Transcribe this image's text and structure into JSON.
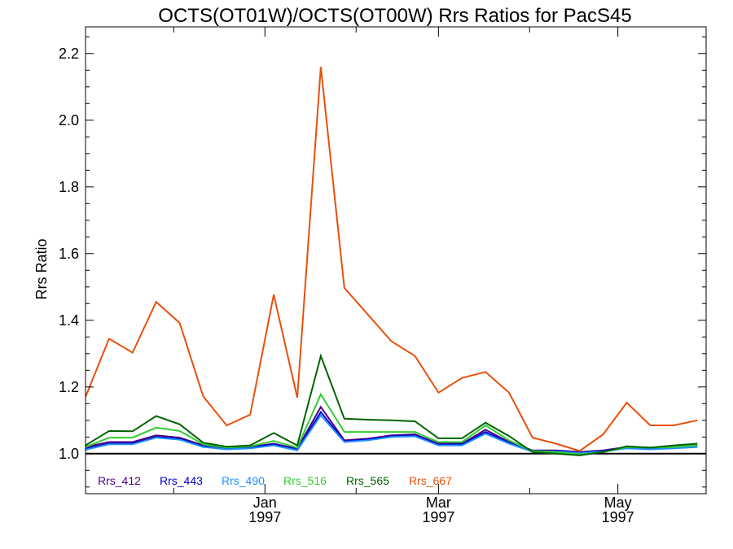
{
  "chart_data": {
    "type": "line",
    "title": "OCTS(OT01W)/OCTS(OT00W)  Rrs Ratios for PacS45",
    "xlabel": "",
    "ylabel": "Rrs Ratio",
    "x_range": [
      "1996-11-01",
      "1997-05-31"
    ],
    "ylim": [
      0.88,
      2.28
    ],
    "y_ticks": [
      1.0,
      1.2,
      1.4,
      1.6,
      1.8,
      2.0,
      2.2
    ],
    "y_tick_labels": [
      "1.0",
      "1.2",
      "1.4",
      "1.6",
      "1.8",
      "2.0",
      "2.2"
    ],
    "x_major_ticks": [
      {
        "date": "1997-01-01",
        "label1": "Jan",
        "label2": "1997"
      },
      {
        "date": "1997-03-01",
        "label1": "Mar",
        "label2": "1997"
      },
      {
        "date": "1997-05-01",
        "label1": "May",
        "label2": "1997"
      }
    ],
    "x_minor_ticks": [
      "1996-12-01",
      "1997-02-01",
      "1997-04-01"
    ],
    "reference_line": 1.0,
    "grid": false,
    "legend_position": "bottom-left",
    "x": [
      "1996-11-01",
      "1996-11-09",
      "1996-11-17",
      "1996-11-25",
      "1996-12-03",
      "1996-12-11",
      "1996-12-19",
      "1996-12-27",
      "1997-01-04",
      "1997-01-12",
      "1997-01-20",
      "1997-01-28",
      "1997-02-05",
      "1997-02-13",
      "1997-02-21",
      "1997-03-01",
      "1997-03-09",
      "1997-03-17",
      "1997-03-25",
      "1997-04-02",
      "1997-04-10",
      "1997-04-18",
      "1997-04-26",
      "1997-05-04",
      "1997-05-12",
      "1997-05-20",
      "1997-05-28"
    ],
    "series": [
      {
        "name": "Rrs_412",
        "color": "#4b0082",
        "values": [
          1.02,
          1.035,
          1.035,
          1.055,
          1.048,
          1.025,
          1.018,
          1.02,
          1.03,
          1.015,
          1.14,
          1.04,
          1.045,
          1.055,
          1.058,
          1.03,
          1.03,
          1.072,
          1.035,
          1.01,
          1.01,
          1.005,
          1.01,
          1.02,
          1.018,
          1.02,
          1.025
        ]
      },
      {
        "name": "Rrs_443",
        "color": "#0000cd",
        "values": [
          1.015,
          1.03,
          1.03,
          1.05,
          1.045,
          1.022,
          1.015,
          1.018,
          1.028,
          1.012,
          1.125,
          1.037,
          1.043,
          1.052,
          1.055,
          1.027,
          1.028,
          1.065,
          1.032,
          1.008,
          1.008,
          1.003,
          1.008,
          1.018,
          1.015,
          1.018,
          1.022
        ]
      },
      {
        "name": "Rrs_490",
        "color": "#1e90ff",
        "values": [
          1.012,
          1.028,
          1.028,
          1.048,
          1.042,
          1.02,
          1.013,
          1.016,
          1.025,
          1.01,
          1.115,
          1.035,
          1.04,
          1.05,
          1.052,
          1.025,
          1.025,
          1.06,
          1.03,
          1.006,
          1.006,
          1.002,
          1.006,
          1.016,
          1.013,
          1.016,
          1.02
        ]
      },
      {
        "name": "Rrs_516",
        "color": "#32cd32",
        "values": [
          1.02,
          1.048,
          1.048,
          1.078,
          1.068,
          1.028,
          1.018,
          1.022,
          1.038,
          1.018,
          1.178,
          1.065,
          1.065,
          1.065,
          1.065,
          1.035,
          1.035,
          1.085,
          1.04,
          1.008,
          1.005,
          0.998,
          1.005,
          1.02,
          1.018,
          1.02,
          1.025
        ]
      },
      {
        "name": "Rrs_565",
        "color": "#006400",
        "values": [
          1.025,
          1.068,
          1.067,
          1.113,
          1.088,
          1.033,
          1.021,
          1.025,
          1.062,
          1.025,
          1.293,
          1.105,
          1.102,
          1.1,
          1.097,
          1.046,
          1.046,
          1.093,
          1.053,
          1.005,
          1.0,
          0.995,
          1.005,
          1.022,
          1.018,
          1.025,
          1.03
        ]
      },
      {
        "name": "Rrs_667",
        "color": "#e8500a",
        "values": [
          1.17,
          1.345,
          1.303,
          1.455,
          1.392,
          1.172,
          1.085,
          1.117,
          1.477,
          1.168,
          2.16,
          1.497,
          1.417,
          1.337,
          1.293,
          1.183,
          1.227,
          1.245,
          1.183,
          1.048,
          1.03,
          1.008,
          1.058,
          1.153,
          1.085,
          1.085,
          1.1
        ]
      }
    ]
  }
}
